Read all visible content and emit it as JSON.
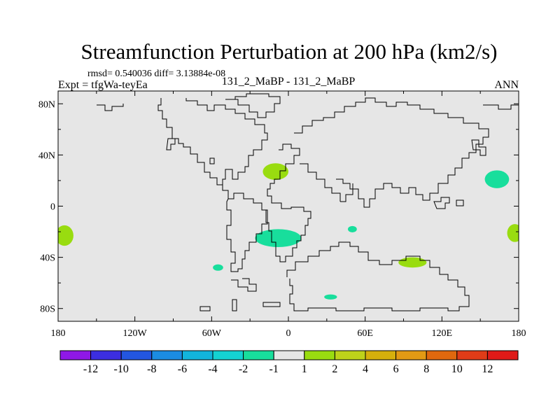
{
  "chart_data": {
    "type": "heatmap",
    "title": "Streamfunction Perturbation at 200 hPa (km2/s)",
    "stats_line": "rmsd= 0.540036 diff= 3.13884e-08",
    "left_label": "Expt = tfgWa-teyEa",
    "center_label": "131_2_MaBP - 131_2_MaBP",
    "right_label": "ANN",
    "x_range": [
      -180,
      180
    ],
    "y_range": [
      -90,
      90
    ],
    "x_ticks": [
      {
        "value": -180,
        "label": "180"
      },
      {
        "value": -120,
        "label": "120W"
      },
      {
        "value": -60,
        "label": "60W"
      },
      {
        "value": 0,
        "label": "0"
      },
      {
        "value": 60,
        "label": "60E"
      },
      {
        "value": 120,
        "label": "120E"
      },
      {
        "value": 180,
        "label": "180"
      }
    ],
    "y_ticks": [
      {
        "value": 80,
        "label": "80N"
      },
      {
        "value": 40,
        "label": "40N"
      },
      {
        "value": 0,
        "label": "0"
      },
      {
        "value": -40,
        "label": "40S"
      },
      {
        "value": -80,
        "label": "80S"
      }
    ],
    "colorbar": {
      "colors": [
        "#8f18e6",
        "#3c2ee0",
        "#2356e0",
        "#1b8ce2",
        "#12b4dc",
        "#14d2d2",
        "#18de9c",
        "#e6e6e6",
        "#99dc10",
        "#bed21a",
        "#d6b00c",
        "#e29a14",
        "#e0680e",
        "#e03c18",
        "#e01a18"
      ],
      "tick_labels": [
        "-12",
        "-10",
        "-8",
        "-6",
        "-4",
        "-2",
        "-1",
        "1",
        "2",
        "4",
        "6",
        "8",
        "10",
        "12"
      ]
    },
    "colors": {
      "background": "#e6e6e6",
      "positive": "#99dc10",
      "negative": "#18de9c"
    },
    "anomalies": [
      {
        "sign": "positive",
        "level": "1 to 2",
        "lon": -10,
        "lat": 27,
        "rlon": 10,
        "rlat": 6.5
      },
      {
        "sign": "positive",
        "level": "1 to 2",
        "lon": -175,
        "lat": -23,
        "rlon": 7,
        "rlat": 8
      },
      {
        "sign": "positive",
        "level": "1 to 2",
        "lon": 177,
        "lat": -21,
        "rlon": 6,
        "rlat": 7
      },
      {
        "sign": "positive",
        "level": "1 to 2",
        "lon": 97,
        "lat": -44,
        "rlon": 11,
        "rlat": 4
      },
      {
        "sign": "negative",
        "level": "-1 to -2",
        "lon": 163,
        "lat": 21,
        "rlon": 9.5,
        "rlat": 7
      },
      {
        "sign": "negative",
        "level": "-1 to -2",
        "lon": -8,
        "lat": -25,
        "rlon": 18,
        "rlat": 7
      },
      {
        "sign": "negative",
        "level": "-1 to -2",
        "lon": 50,
        "lat": -18,
        "rlon": 3.5,
        "rlat": 2.5
      },
      {
        "sign": "negative",
        "level": "-1 to -2",
        "lon": -55,
        "lat": -48,
        "rlon": 4,
        "rlat": 2.5
      },
      {
        "sign": "negative",
        "level": "-1 to -2",
        "lon": 33,
        "lat": -71,
        "rlon": 5,
        "rlat": 2
      }
    ]
  }
}
